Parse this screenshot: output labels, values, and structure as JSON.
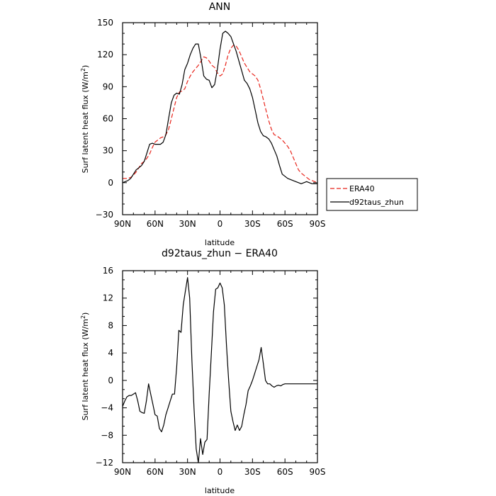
{
  "chart_data": [
    {
      "type": "line",
      "title": "ANN",
      "xlabel": "latitude",
      "ylabel": "Surf latent heat flux (W/m2)",
      "ylabel_main": "Surf latent heat flux (W/m",
      "ylabel_sup": "2",
      "ylabel_close": ")",
      "xticks": [
        {
          "value": 90,
          "label": "90N"
        },
        {
          "value": 60,
          "label": "60N"
        },
        {
          "value": 30,
          "label": "30N"
        },
        {
          "value": 0,
          "label": "0"
        },
        {
          "value": -30,
          "label": "30S"
        },
        {
          "value": -60,
          "label": "60S"
        },
        {
          "value": -90,
          "label": "90S"
        }
      ],
      "yticks": [
        {
          "value": 150,
          "label": "150"
        },
        {
          "value": 120,
          "label": "120"
        },
        {
          "value": 90,
          "label": "90"
        },
        {
          "value": 60,
          "label": "60"
        },
        {
          "value": 30,
          "label": "30"
        },
        {
          "value": 0,
          "label": "0"
        },
        {
          "value": -30,
          "label": "−30"
        }
      ],
      "xlim": [
        90,
        -90
      ],
      "ylim": [
        -30,
        150
      ],
      "legend": {
        "position": "right",
        "entries": [
          "ERA40",
          "d92taus_zhun"
        ]
      },
      "series": [
        {
          "name": "ERA40",
          "color": "#e8231a",
          "dash": "6,3",
          "x": [
            90,
            87.5,
            85,
            82.5,
            80,
            77.5,
            75,
            72.5,
            70,
            67.5,
            65,
            62.5,
            60,
            57.5,
            55,
            52.5,
            50,
            47.5,
            45,
            42.5,
            40,
            37.5,
            35,
            32.5,
            30,
            27.5,
            25,
            22.5,
            20,
            17.5,
            15,
            12.5,
            10,
            7.5,
            5,
            2.5,
            0,
            -2.5,
            -5,
            -7.5,
            -10,
            -12.5,
            -15,
            -17.5,
            -20,
            -22.5,
            -25,
            -27.5,
            -30,
            -32.5,
            -35,
            -37.5,
            -40,
            -42.5,
            -45,
            -47.5,
            -50,
            -52.5,
            -55,
            -57.5,
            -60,
            -62.5,
            -65,
            -67.5,
            -70,
            -72.5,
            -75,
            -77.5,
            -80,
            -82.5,
            -85,
            -87.5,
            -90
          ],
          "y": [
            4,
            4,
            4,
            5,
            7,
            10,
            14,
            18,
            20,
            23,
            27,
            33,
            38,
            40,
            42,
            43,
            45,
            50,
            60,
            70,
            80,
            85,
            86,
            88,
            95,
            100,
            104,
            107,
            110,
            114,
            118,
            117,
            114,
            110,
            108,
            103,
            100,
            102,
            110,
            120,
            126,
            129,
            128,
            124,
            118,
            112,
            108,
            104,
            102,
            100,
            96,
            88,
            78,
            68,
            58,
            50,
            45,
            44,
            42,
            40,
            37,
            34,
            30,
            24,
            18,
            12,
            9,
            7,
            5,
            3,
            2,
            1,
            0
          ]
        },
        {
          "name": "d92taus_zhun",
          "color": "#000000",
          "dash": "",
          "x": [
            90,
            87.5,
            85,
            82.5,
            80,
            77.5,
            75,
            72.5,
            70,
            67.5,
            65,
            62.5,
            60,
            57.5,
            55,
            52.5,
            50,
            47.5,
            45,
            42.5,
            40,
            37.5,
            35,
            32.5,
            30,
            27.5,
            25,
            22.5,
            20,
            17.5,
            15,
            12.5,
            10,
            7.5,
            5,
            2.5,
            0,
            -2.5,
            -5,
            -7.5,
            -10,
            -12.5,
            -15,
            -17.5,
            -20,
            -22.5,
            -25,
            -27.5,
            -30,
            -32.5,
            -35,
            -37.5,
            -40,
            -42.5,
            -45,
            -47.5,
            -50,
            -52.5,
            -55,
            -57.5,
            -60,
            -62.5,
            -65,
            -67.5,
            -70,
            -72.5,
            -75,
            -77.5,
            -80,
            -82.5,
            -85,
            -87.5,
            -90
          ],
          "y": [
            0,
            1,
            2,
            4,
            8,
            12,
            14,
            16,
            20,
            28,
            36,
            37,
            36,
            36,
            36,
            38,
            45,
            60,
            75,
            82,
            84,
            83,
            92,
            106,
            112,
            120,
            126,
            130,
            130,
            116,
            100,
            97,
            96,
            89,
            92,
            106,
            125,
            140,
            142,
            140,
            137,
            130,
            123,
            114,
            105,
            96,
            93,
            88,
            80,
            68,
            56,
            48,
            44,
            43,
            41,
            37,
            31,
            25,
            16,
            8,
            6,
            4,
            3,
            2,
            1,
            0,
            -1,
            0,
            1,
            0,
            -1,
            -1,
            -1
          ]
        }
      ]
    },
    {
      "type": "line",
      "title": "d92taus_zhun − ERA40",
      "xlabel": "latitude",
      "ylabel": "Surf latent heat flux (W/m2)",
      "ylabel_main": "Surf latent heat flux (W/m",
      "ylabel_sup": "2",
      "ylabel_close": ")",
      "xticks": [
        {
          "value": 90,
          "label": "90N"
        },
        {
          "value": 60,
          "label": "60N"
        },
        {
          "value": 30,
          "label": "30N"
        },
        {
          "value": 0,
          "label": "0"
        },
        {
          "value": -30,
          "label": "30S"
        },
        {
          "value": -60,
          "label": "60S"
        },
        {
          "value": -90,
          "label": "90S"
        }
      ],
      "yticks": [
        {
          "value": 16,
          "label": "16"
        },
        {
          "value": 12,
          "label": "12"
        },
        {
          "value": 8,
          "label": "8"
        },
        {
          "value": 4,
          "label": "4"
        },
        {
          "value": 0,
          "label": "0"
        },
        {
          "value": -4,
          "label": "−4"
        },
        {
          "value": -8,
          "label": "−8"
        },
        {
          "value": -12,
          "label": "−12"
        }
      ],
      "xlim": [
        90,
        -90
      ],
      "ylim": [
        -12,
        16
      ],
      "series": [
        {
          "color": "#000000",
          "dash": "",
          "x": [
            90,
            88,
            86,
            84,
            82,
            80,
            78,
            76,
            74,
            72,
            70,
            68,
            66,
            64,
            62,
            60,
            58,
            56,
            54,
            52,
            50,
            48,
            46,
            44,
            42,
            40,
            38,
            36,
            34,
            32,
            30,
            28,
            26,
            24,
            22,
            20,
            18,
            16,
            14,
            12,
            10,
            8,
            6,
            4,
            2,
            0,
            -2,
            -4,
            -6,
            -8,
            -10,
            -12,
            -14,
            -16,
            -18,
            -20,
            -22,
            -24,
            -26,
            -28,
            -30,
            -32,
            -34,
            -36,
            -38,
            -40,
            -42,
            -44,
            -46,
            -48,
            -50,
            -52,
            -54,
            -56,
            -58,
            -60,
            -62,
            -64,
            -66,
            -68,
            -70,
            -72,
            -74,
            -76,
            -78,
            -80,
            -82,
            -84,
            -86,
            -88,
            -90
          ],
          "y": [
            -3.8,
            -3,
            -2.4,
            -2.2,
            -2.2,
            -2,
            -1.8,
            -3,
            -4.5,
            -4.7,
            -4.8,
            -3,
            -0.5,
            -2,
            -3.5,
            -5,
            -5.2,
            -7,
            -7.5,
            -6.5,
            -5,
            -4,
            -3,
            -2,
            -2,
            2,
            7.3,
            7,
            11,
            13,
            15,
            12,
            3,
            -4,
            -10,
            -12,
            -8.5,
            -10.8,
            -9,
            -8.6,
            -2,
            4,
            10,
            13.3,
            13.5,
            14.2,
            13.5,
            11,
            5,
            0,
            -4.5,
            -6,
            -7.3,
            -6.5,
            -7.3,
            -6.7,
            -5,
            -3.5,
            -1.5,
            -0.8,
            0,
            1,
            2,
            3,
            4.8,
            2.5,
            0,
            -0.5,
            -0.5,
            -0.8,
            -1,
            -0.8,
            -0.7,
            -0.8,
            -0.6,
            -0.5,
            -0.5,
            -0.5,
            -0.5,
            -0.5,
            -0.5,
            -0.5,
            -0.5,
            -0.5,
            -0.5,
            -0.5,
            -0.5,
            -0.5,
            -0.5,
            -0.5,
            -0.5
          ]
        }
      ]
    }
  ]
}
